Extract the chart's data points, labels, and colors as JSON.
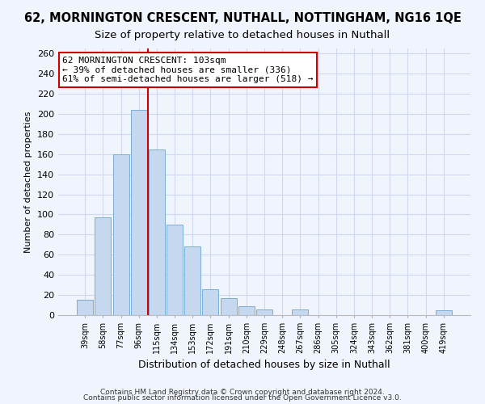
{
  "title": "62, MORNINGTON CRESCENT, NUTHALL, NOTTINGHAM, NG16 1QE",
  "subtitle": "Size of property relative to detached houses in Nuthall",
  "xlabel": "Distribution of detached houses by size in Nuthall",
  "ylabel": "Number of detached properties",
  "bar_labels": [
    "39sqm",
    "58sqm",
    "77sqm",
    "96sqm",
    "115sqm",
    "134sqm",
    "153sqm",
    "172sqm",
    "191sqm",
    "210sqm",
    "229sqm",
    "248sqm",
    "267sqm",
    "286sqm",
    "305sqm",
    "324sqm",
    "343sqm",
    "362sqm",
    "381sqm",
    "400sqm",
    "419sqm"
  ],
  "bar_values": [
    15,
    97,
    160,
    204,
    165,
    90,
    68,
    26,
    17,
    9,
    6,
    0,
    6,
    0,
    0,
    0,
    0,
    0,
    0,
    0,
    5
  ],
  "bar_color": "#c5d8f0",
  "bar_edge_color": "#7aaed4",
  "vline_x": 3.5,
  "vline_color": "#cc0000",
  "annotation_title": "62 MORNINGTON CRESCENT: 103sqm",
  "annotation_line1": "← 39% of detached houses are smaller (336)",
  "annotation_line2": "61% of semi-detached houses are larger (518) →",
  "annotation_box_color": "#ffffff",
  "annotation_box_edge": "#cc0000",
  "ylim": [
    0,
    265
  ],
  "yticks": [
    0,
    20,
    40,
    60,
    80,
    100,
    120,
    140,
    160,
    180,
    200,
    220,
    240,
    260
  ],
  "footer1": "Contains HM Land Registry data © Crown copyright and database right 2024.",
  "footer2": "Contains public sector information licensed under the Open Government Licence v3.0.",
  "bg_color": "#f0f4fd",
  "title_fontsize": 10.5,
  "subtitle_fontsize": 9.5,
  "grid_color": "#d0d8ee"
}
